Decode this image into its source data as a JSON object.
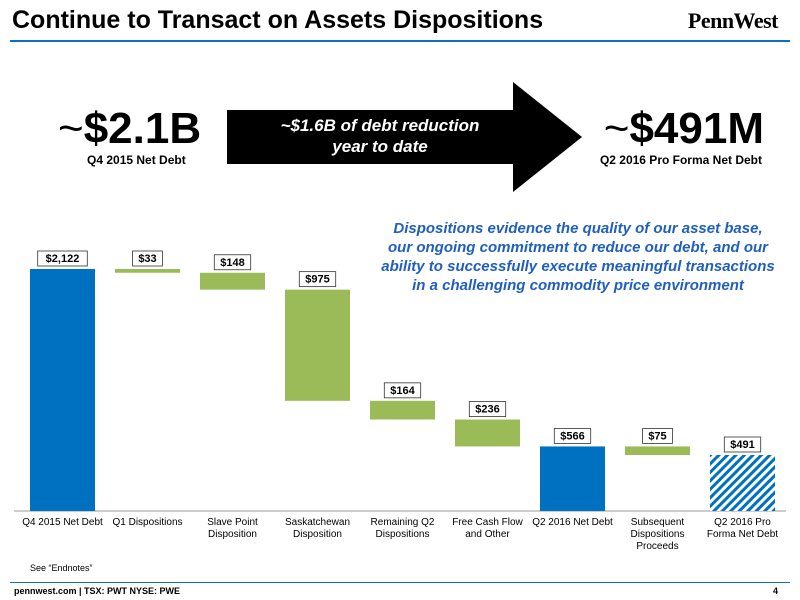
{
  "header": {
    "title": "Continue to Transact on Assets Dispositions",
    "logo": "PennWest"
  },
  "summary": {
    "left_tilde": "~",
    "left_value": "$2.1B",
    "left_label": "Q4 2015 Net Debt",
    "arrow_text_line1": "~$1.6B of debt reduction",
    "arrow_text_line2": "year to date",
    "right_tilde": "~",
    "right_value": "$491M",
    "right_label": "Q2 2016 Pro Forma Net Debt"
  },
  "callout": "Dispositions evidence the quality of our asset base, our ongoing commitment to reduce our debt, and our ability to successfully execute meaningful transactions in a challenging commodity price environment",
  "colors": {
    "total": "#0070c0",
    "reduction": "#9bbb59",
    "proforma_hatch": "#0070c0",
    "accent_text": "#1f5fbf",
    "rule": "#0c6fc7"
  },
  "chart_data": {
    "type": "bar",
    "subtype": "waterfall",
    "categories": [
      [
        "Q4 2015 Net Debt"
      ],
      [
        "Q1 Dispositions"
      ],
      [
        "Slave Point",
        "Disposition"
      ],
      [
        "Saskatchewan",
        "Disposition"
      ],
      [
        "Remaining Q2",
        "Dispositions"
      ],
      [
        "Free Cash Flow",
        "and Other"
      ],
      [
        "Q2 2016 Net Debt"
      ],
      [
        "Subsequent",
        "Dispositions",
        "Proceeds"
      ],
      [
        "Q2 2016 Pro",
        "Forma Net Debt"
      ]
    ],
    "values": [
      2122,
      -33,
      -148,
      -975,
      -164,
      -236,
      566,
      -75,
      491
    ],
    "kinds": [
      "total",
      "delta",
      "delta",
      "delta",
      "delta",
      "delta",
      "total",
      "delta",
      "proforma"
    ],
    "data_labels": [
      "$2,122",
      "$33",
      "$148",
      "$975",
      "$164",
      "$236",
      "$566",
      "$75",
      "$491"
    ],
    "ylim": [
      0,
      2122
    ],
    "grid": false,
    "legend": "none"
  },
  "footer": {
    "site": "pennwest.com | TSX: PWT  NYSE: PWE",
    "page": "4",
    "endnote": "See “Endnotes”"
  }
}
